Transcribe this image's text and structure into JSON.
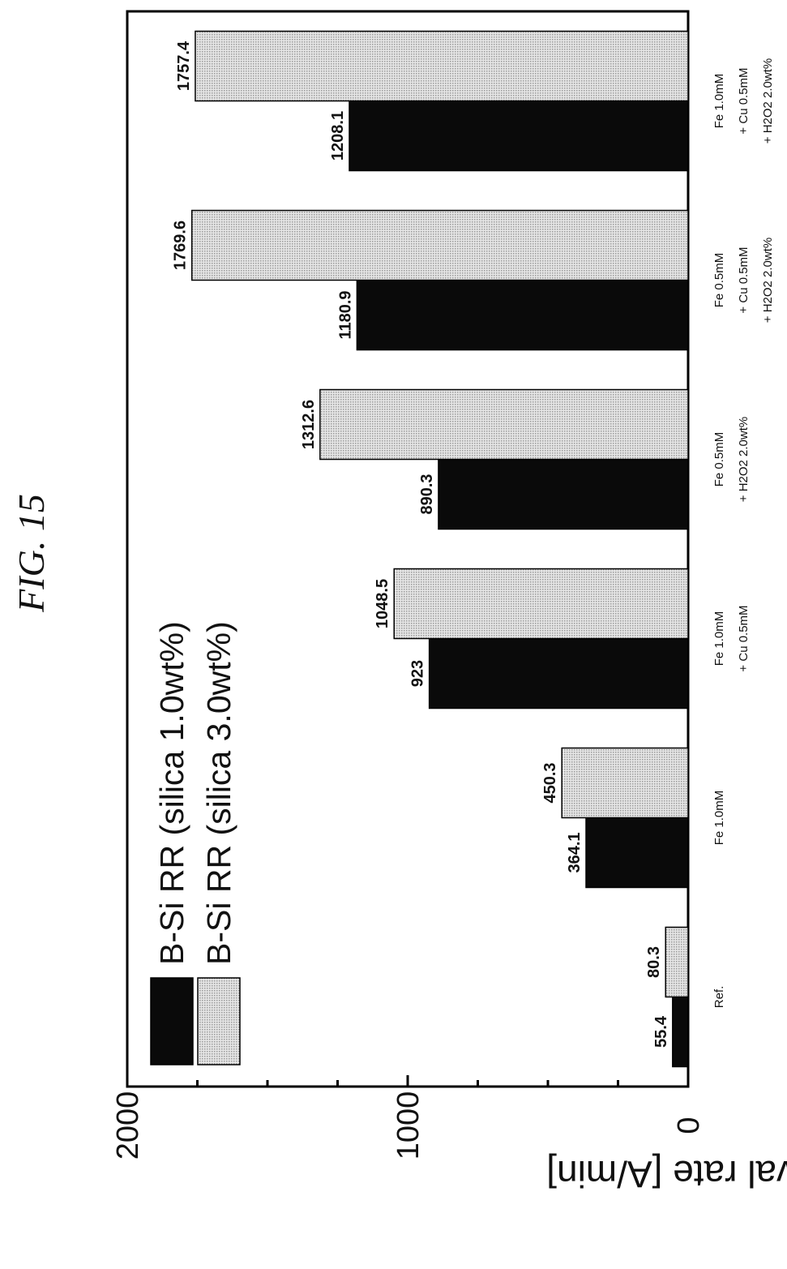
{
  "figure_title": "FIG. 15",
  "chart_data": {
    "type": "bar",
    "categories": [
      [
        "Ref."
      ],
      [
        "Fe 1.0mM"
      ],
      [
        "Fe 1.0mM",
        "+ Cu 0.5mM"
      ],
      [
        "Fe 0.5mM",
        "+ H2O2 2.0wt%"
      ],
      [
        "Fe 0.5mM",
        "+ Cu 0.5mM",
        "+ H2O2 2.0wt%"
      ],
      [
        "Fe 1.0mM",
        "+ Cu 0.5mM",
        "+ H2O2 2.0wt%"
      ]
    ],
    "series": [
      {
        "name": "B-Si RR (silica 1.0wt%)",
        "color": "#0a0a0a",
        "values": [
          55.4,
          364.1,
          923,
          890.3,
          1180.9,
          1208.1
        ],
        "labels": [
          "55.4",
          "364.1",
          "923",
          "890.3",
          "1180.9",
          "1208.1"
        ]
      },
      {
        "name": "B-Si RR (silica 3.0wt%)",
        "color": "#d4d4d4",
        "values": [
          80.3,
          450.3,
          1048.5,
          1312.6,
          1769.6,
          1757.4
        ],
        "labels": [
          "80.3",
          "450.3",
          "1048.5",
          "1312.6",
          "1769.6",
          "1757.4"
        ]
      }
    ],
    "ylabel": "Removal rate [A/min]",
    "xlabel": "",
    "ylim": [
      0,
      2000
    ],
    "yticks": [
      "0",
      "1000",
      "2000"
    ],
    "orientation": "rotated-90-ccw",
    "legend": "top-left",
    "grid": false
  }
}
